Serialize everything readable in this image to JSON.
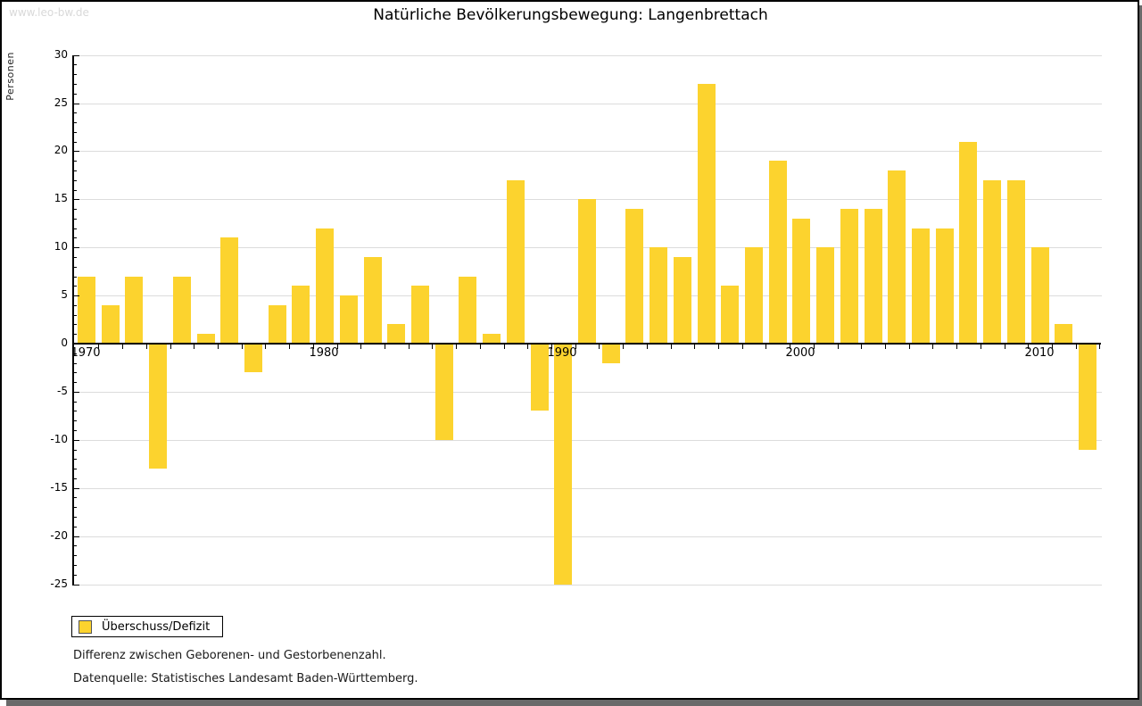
{
  "watermark": "www.leo-bw.de",
  "header": {
    "title": "Natürliche Bevölkerungsbewegung: Langenbrettach"
  },
  "legend": {
    "label": "Überschuss/Defizit"
  },
  "notes": {
    "line1": "Differenz zwischen Geborenen- und Gestorbenenzahl.",
    "line2": "Datenquelle: Statistisches Landesamt Baden-Württemberg."
  },
  "colors": {
    "bar": "#fcd32e",
    "grid": "#dcdcdc",
    "axis": "#000000",
    "watermark": "#d9d9d9",
    "frame_shadow": "#6a6a6a"
  },
  "chart_data": {
    "type": "bar",
    "title": "Natürliche Bevölkerungsbewegung: Langenbrettach",
    "xlabel": "",
    "ylabel": "Personen",
    "ylim": [
      -25,
      30
    ],
    "ytick_interval": 5,
    "y_minor_tick_interval": 1,
    "grid": true,
    "legend_entries": [
      "Überschuss/Defizit"
    ],
    "legend_position": "bottom-left",
    "bar_color": "#fcd32e",
    "x_labeled_ticks": [
      1970,
      1980,
      1990,
      2000,
      2010
    ],
    "x": [
      1970,
      1971,
      1972,
      1973,
      1974,
      1975,
      1976,
      1977,
      1978,
      1979,
      1980,
      1981,
      1982,
      1983,
      1984,
      1985,
      1986,
      1987,
      1988,
      1989,
      1990,
      1991,
      1992,
      1993,
      1994,
      1995,
      1996,
      1997,
      1998,
      1999,
      2000,
      2001,
      2002,
      2003,
      2004,
      2005,
      2006,
      2007,
      2008,
      2009,
      2010,
      2011,
      2012
    ],
    "values": [
      7,
      4,
      7,
      -13,
      7,
      1,
      11,
      -3,
      4,
      6,
      12,
      5,
      9,
      2,
      6,
      -10,
      7,
      1,
      17,
      -7,
      -25,
      15,
      -2,
      14,
      10,
      9,
      27,
      6,
      10,
      19,
      13,
      10,
      14,
      14,
      18,
      12,
      12,
      21,
      17,
      17,
      10,
      2,
      -11
    ]
  }
}
